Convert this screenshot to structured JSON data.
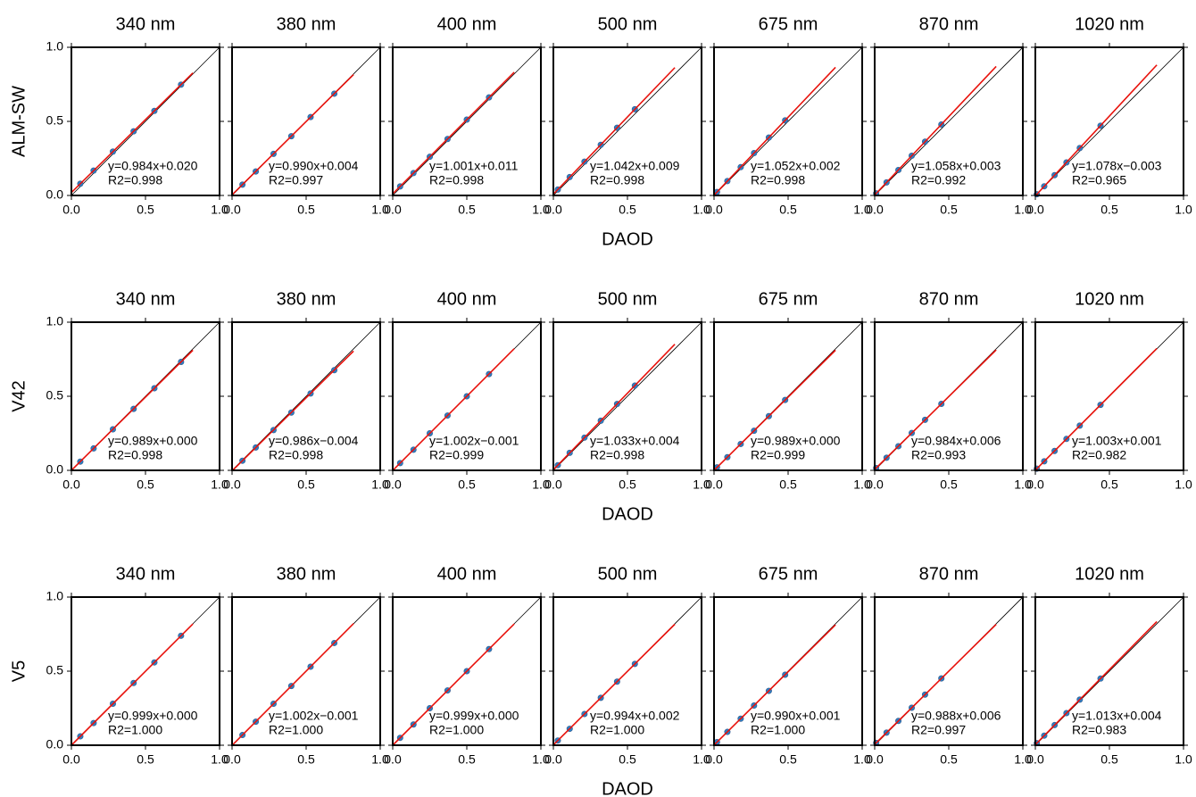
{
  "chart_data": [
    {
      "type": "scatter",
      "title": "340 nm",
      "ylabel": "ALM-SW",
      "x": [
        0.06,
        0.15,
        0.28,
        0.42,
        0.56,
        0.74
      ],
      "y": [
        0.079,
        0.168,
        0.296,
        0.433,
        0.571,
        0.748
      ],
      "fit_x": [
        0,
        0.82
      ],
      "fit_y": [
        0.02,
        0.827
      ],
      "fit_label": "y=0.984x+0.020",
      "r2_label": "R2=0.998",
      "xlim": [
        0,
        1
      ],
      "ylim": [
        0,
        1
      ],
      "xticks": [
        {
          "value": 0,
          "label": "0.0"
        },
        {
          "value": 0.5,
          "label": "0.5"
        },
        {
          "value": 1,
          "label": "1.0"
        }
      ],
      "yticks": [
        {
          "value": 0,
          "label": "0.0"
        },
        {
          "value": 0.5,
          "label": "0.5"
        },
        {
          "value": 1,
          "label": "1.0"
        }
      ]
    },
    {
      "type": "scatter",
      "title": "380 nm",
      "x": [
        0.07,
        0.16,
        0.28,
        0.4,
        0.53,
        0.69
      ],
      "y": [
        0.073,
        0.162,
        0.281,
        0.4,
        0.529,
        0.687
      ],
      "fit_x": [
        0,
        0.82
      ],
      "fit_y": [
        0.004,
        0.816
      ],
      "fit_label": "y=0.990x+0.004",
      "r2_label": "R2=0.997",
      "xlim": [
        0,
        1
      ],
      "ylim": [
        0,
        1
      ],
      "xticks": [
        {
          "value": 0,
          "label": "0.0"
        },
        {
          "value": 0.5,
          "label": "0.5"
        },
        {
          "value": 1,
          "label": "1.0"
        }
      ],
      "yticks": [
        0,
        0.5,
        1
      ]
    },
    {
      "type": "scatter",
      "title": "400 nm",
      "x": [
        0.05,
        0.14,
        0.25,
        0.37,
        0.5,
        0.65
      ],
      "y": [
        0.061,
        0.151,
        0.261,
        0.381,
        0.512,
        0.662
      ],
      "fit_x": [
        0,
        0.82
      ],
      "fit_y": [
        0.011,
        0.832
      ],
      "fit_label": "y=1.001x+0.011",
      "r2_label": "R2=0.998",
      "xlim": [
        0,
        1
      ],
      "ylim": [
        0,
        1
      ],
      "xticks": [
        {
          "value": 0,
          "label": "0.0"
        },
        {
          "value": 0.5,
          "label": "0.5"
        },
        {
          "value": 1,
          "label": "1.0"
        }
      ],
      "yticks": [
        0,
        0.5,
        1
      ]
    },
    {
      "type": "scatter",
      "title": "500 nm",
      "xlabel": "DAOD",
      "x": [
        0.03,
        0.11,
        0.21,
        0.32,
        0.43,
        0.55
      ],
      "y": [
        0.04,
        0.124,
        0.228,
        0.342,
        0.457,
        0.582
      ],
      "fit_x": [
        0,
        0.82
      ],
      "fit_y": [
        0.009,
        0.863
      ],
      "fit_label": "y=1.042x+0.009",
      "r2_label": "R2=0.998",
      "xlim": [
        0,
        1
      ],
      "ylim": [
        0,
        1
      ],
      "xticks": [
        {
          "value": 0,
          "label": "0.0"
        },
        {
          "value": 0.5,
          "label": "0.5"
        },
        {
          "value": 1,
          "label": "1.0"
        }
      ],
      "yticks": [
        0,
        0.5,
        1
      ]
    },
    {
      "type": "scatter",
      "title": "675 nm",
      "x": [
        0.02,
        0.09,
        0.18,
        0.27,
        0.37,
        0.48
      ],
      "y": [
        0.023,
        0.097,
        0.191,
        0.286,
        0.391,
        0.507
      ],
      "fit_x": [
        0,
        0.82
      ],
      "fit_y": [
        0.002,
        0.865
      ],
      "fit_label": "y=1.052x+0.002",
      "r2_label": "R2=0.998",
      "xlim": [
        0,
        1
      ],
      "ylim": [
        0,
        1
      ],
      "xticks": [
        {
          "value": 0,
          "label": "0.0"
        },
        {
          "value": 0.5,
          "label": "0.5"
        },
        {
          "value": 1,
          "label": "1.0"
        }
      ],
      "yticks": [
        0,
        0.5,
        1
      ]
    },
    {
      "type": "scatter",
      "title": "870 nm",
      "x": [
        0.01,
        0.08,
        0.16,
        0.25,
        0.34,
        0.45
      ],
      "y": [
        0.014,
        0.088,
        0.172,
        0.268,
        0.363,
        0.479
      ],
      "fit_x": [
        0,
        0.82
      ],
      "fit_y": [
        0.003,
        0.871
      ],
      "fit_label": "y=1.058x+0.003",
      "r2_label": "R2=0.992",
      "xlim": [
        0,
        1
      ],
      "ylim": [
        0,
        1
      ],
      "xticks": [
        {
          "value": 0,
          "label": "0.0"
        },
        {
          "value": 0.5,
          "label": "0.5"
        },
        {
          "value": 1,
          "label": "1.0"
        }
      ],
      "yticks": [
        0,
        0.5,
        1
      ]
    },
    {
      "type": "scatter",
      "title": "1020 nm",
      "x": [
        0.01,
        0.06,
        0.13,
        0.21,
        0.3,
        0.44
      ],
      "y": [
        0.008,
        0.062,
        0.137,
        0.223,
        0.32,
        0.471
      ],
      "fit_x": [
        0,
        0.82
      ],
      "fit_y": [
        -0.003,
        0.881
      ],
      "fit_label": "y=1.078x−0.003",
      "r2_label": "R2=0.965",
      "xlim": [
        0,
        1
      ],
      "ylim": [
        0,
        1
      ],
      "xticks": [
        {
          "value": 0,
          "label": "0.0"
        },
        {
          "value": 0.5,
          "label": "0.5"
        },
        {
          "value": 1,
          "label": "1.0"
        }
      ],
      "yticks": [
        0,
        0.5,
        1
      ]
    },
    {
      "type": "scatter",
      "title": "340 nm",
      "ylabel": "V42",
      "x": [
        0.06,
        0.15,
        0.28,
        0.42,
        0.56,
        0.74
      ],
      "y": [
        0.059,
        0.148,
        0.277,
        0.415,
        0.554,
        0.732
      ],
      "fit_x": [
        0,
        0.82
      ],
      "fit_y": [
        0.0,
        0.811
      ],
      "fit_label": "y=0.989x+0.000",
      "r2_label": "R2=0.998",
      "xlim": [
        0,
        1
      ],
      "ylim": [
        0,
        1
      ],
      "xticks": [
        {
          "value": 0,
          "label": "0.0"
        },
        {
          "value": 0.5,
          "label": "0.5"
        },
        {
          "value": 1,
          "label": "1.0"
        }
      ],
      "yticks": [
        {
          "value": 0,
          "label": "0.0"
        },
        {
          "value": 0.5,
          "label": "0.5"
        },
        {
          "value": 1,
          "label": "1.0"
        }
      ]
    },
    {
      "type": "scatter",
      "title": "380 nm",
      "x": [
        0.07,
        0.16,
        0.28,
        0.4,
        0.53,
        0.69
      ],
      "y": [
        0.065,
        0.154,
        0.272,
        0.39,
        0.519,
        0.676
      ],
      "fit_x": [
        0,
        0.82
      ],
      "fit_y": [
        -0.004,
        0.805
      ],
      "fit_label": "y=0.986x−0.004",
      "r2_label": "R2=0.998",
      "xlim": [
        0,
        1
      ],
      "ylim": [
        0,
        1
      ],
      "xticks": [
        {
          "value": 0,
          "label": "0.0"
        },
        {
          "value": 0.5,
          "label": "0.5"
        },
        {
          "value": 1,
          "label": "1.0"
        }
      ],
      "yticks": [
        0,
        0.5,
        1
      ]
    },
    {
      "type": "scatter",
      "title": "400 nm",
      "x": [
        0.05,
        0.14,
        0.25,
        0.37,
        0.5,
        0.65
      ],
      "y": [
        0.049,
        0.139,
        0.25,
        0.37,
        0.5,
        0.65
      ],
      "fit_x": [
        0,
        0.82
      ],
      "fit_y": [
        -0.001,
        0.821
      ],
      "fit_label": "y=1.002x−0.001",
      "r2_label": "R2=0.999",
      "xlim": [
        0,
        1
      ],
      "ylim": [
        0,
        1
      ],
      "xticks": [
        {
          "value": 0,
          "label": "0.0"
        },
        {
          "value": 0.5,
          "label": "0.5"
        },
        {
          "value": 1,
          "label": "1.0"
        }
      ],
      "yticks": [
        0,
        0.5,
        1
      ]
    },
    {
      "type": "scatter",
      "title": "500 nm",
      "xlabel": "DAOD",
      "x": [
        0.03,
        0.11,
        0.21,
        0.32,
        0.43,
        0.55
      ],
      "y": [
        0.035,
        0.118,
        0.221,
        0.335,
        0.448,
        0.572
      ],
      "fit_x": [
        0,
        0.82
      ],
      "fit_y": [
        0.004,
        0.851
      ],
      "fit_label": "y=1.033x+0.004",
      "r2_label": "R2=0.998",
      "xlim": [
        0,
        1
      ],
      "ylim": [
        0,
        1
      ],
      "xticks": [
        {
          "value": 0,
          "label": "0.0"
        },
        {
          "value": 0.5,
          "label": "0.5"
        },
        {
          "value": 1,
          "label": "1.0"
        }
      ],
      "yticks": [
        0,
        0.5,
        1
      ]
    },
    {
      "type": "scatter",
      "title": "675 nm",
      "x": [
        0.02,
        0.09,
        0.18,
        0.27,
        0.37,
        0.48
      ],
      "y": [
        0.02,
        0.089,
        0.178,
        0.267,
        0.366,
        0.475
      ],
      "fit_x": [
        0,
        0.82
      ],
      "fit_y": [
        0.0,
        0.811
      ],
      "fit_label": "y=0.989x+0.000",
      "r2_label": "R2=0.999",
      "xlim": [
        0,
        1
      ],
      "ylim": [
        0,
        1
      ],
      "xticks": [
        {
          "value": 0,
          "label": "0.0"
        },
        {
          "value": 0.5,
          "label": "0.5"
        },
        {
          "value": 1,
          "label": "1.0"
        }
      ],
      "yticks": [
        0,
        0.5,
        1
      ]
    },
    {
      "type": "scatter",
      "title": "870 nm",
      "x": [
        0.01,
        0.08,
        0.16,
        0.25,
        0.34,
        0.45
      ],
      "y": [
        0.016,
        0.085,
        0.163,
        0.252,
        0.341,
        0.449
      ],
      "fit_x": [
        0,
        0.82
      ],
      "fit_y": [
        0.006,
        0.813
      ],
      "fit_label": "y=0.984x+0.006",
      "r2_label": "R2=0.993",
      "xlim": [
        0,
        1
      ],
      "ylim": [
        0,
        1
      ],
      "xticks": [
        {
          "value": 0,
          "label": "0.0"
        },
        {
          "value": 0.5,
          "label": "0.5"
        },
        {
          "value": 1,
          "label": "1.0"
        }
      ],
      "yticks": [
        0,
        0.5,
        1
      ]
    },
    {
      "type": "scatter",
      "title": "1020 nm",
      "x": [
        0.01,
        0.06,
        0.13,
        0.21,
        0.3,
        0.44
      ],
      "y": [
        0.011,
        0.061,
        0.131,
        0.212,
        0.302,
        0.442
      ],
      "fit_x": [
        0,
        0.82
      ],
      "fit_y": [
        0.001,
        0.823
      ],
      "fit_label": "y=1.003x+0.001",
      "r2_label": "R2=0.982",
      "xlim": [
        0,
        1
      ],
      "ylim": [
        0,
        1
      ],
      "xticks": [
        {
          "value": 0,
          "label": "0.0"
        },
        {
          "value": 0.5,
          "label": "0.5"
        },
        {
          "value": 1,
          "label": "1.0"
        }
      ],
      "yticks": [
        0,
        0.5,
        1
      ]
    },
    {
      "type": "scatter",
      "title": "340 nm",
      "ylabel": "V5",
      "x": [
        0.06,
        0.15,
        0.28,
        0.42,
        0.56,
        0.74
      ],
      "y": [
        0.06,
        0.15,
        0.28,
        0.42,
        0.559,
        0.739
      ],
      "fit_x": [
        0,
        0.82
      ],
      "fit_y": [
        0.0,
        0.819
      ],
      "fit_label": "y=0.999x+0.000",
      "r2_label": "R2=1.000",
      "xlim": [
        0,
        1
      ],
      "ylim": [
        0,
        1
      ],
      "xticks": [
        {
          "value": 0,
          "label": "0.0"
        },
        {
          "value": 0.5,
          "label": "0.5"
        },
        {
          "value": 1,
          "label": "1.0"
        }
      ],
      "yticks": [
        {
          "value": 0,
          "label": "0.0"
        },
        {
          "value": 0.5,
          "label": "0.5"
        },
        {
          "value": 1,
          "label": "1.0"
        }
      ]
    },
    {
      "type": "scatter",
      "title": "380 nm",
      "x": [
        0.07,
        0.16,
        0.28,
        0.4,
        0.53,
        0.69
      ],
      "y": [
        0.069,
        0.159,
        0.28,
        0.4,
        0.53,
        0.69
      ],
      "fit_x": [
        0,
        0.82
      ],
      "fit_y": [
        -0.001,
        0.821
      ],
      "fit_label": "y=1.002x−0.001",
      "r2_label": "R2=1.000",
      "xlim": [
        0,
        1
      ],
      "ylim": [
        0,
        1
      ],
      "xticks": [
        {
          "value": 0,
          "label": "0.0"
        },
        {
          "value": 0.5,
          "label": "0.5"
        },
        {
          "value": 1,
          "label": "1.0"
        }
      ],
      "yticks": [
        0,
        0.5,
        1
      ]
    },
    {
      "type": "scatter",
      "title": "400 nm",
      "x": [
        0.05,
        0.14,
        0.25,
        0.37,
        0.5,
        0.65
      ],
      "y": [
        0.05,
        0.14,
        0.25,
        0.37,
        0.5,
        0.649
      ],
      "fit_x": [
        0,
        0.82
      ],
      "fit_y": [
        0.0,
        0.819
      ],
      "fit_label": "y=0.999x+0.000",
      "r2_label": "R2=1.000",
      "xlim": [
        0,
        1
      ],
      "ylim": [
        0,
        1
      ],
      "xticks": [
        {
          "value": 0,
          "label": "0.0"
        },
        {
          "value": 0.5,
          "label": "0.5"
        },
        {
          "value": 1,
          "label": "1.0"
        }
      ],
      "yticks": [
        0,
        0.5,
        1
      ]
    },
    {
      "type": "scatter",
      "title": "500 nm",
      "xlabel": "DAOD",
      "x": [
        0.03,
        0.11,
        0.21,
        0.32,
        0.43,
        0.55
      ],
      "y": [
        0.032,
        0.111,
        0.211,
        0.32,
        0.429,
        0.549
      ],
      "fit_x": [
        0,
        0.82
      ],
      "fit_y": [
        0.002,
        0.817
      ],
      "fit_label": "y=0.994x+0.002",
      "r2_label": "R2=1.000",
      "xlim": [
        0,
        1
      ],
      "ylim": [
        0,
        1
      ],
      "xticks": [
        {
          "value": 0,
          "label": "0.0"
        },
        {
          "value": 0.5,
          "label": "0.5"
        },
        {
          "value": 1,
          "label": "1.0"
        }
      ],
      "yticks": [
        0,
        0.5,
        1
      ]
    },
    {
      "type": "scatter",
      "title": "675 nm",
      "x": [
        0.02,
        0.09,
        0.18,
        0.27,
        0.37,
        0.48
      ],
      "y": [
        0.021,
        0.09,
        0.179,
        0.268,
        0.367,
        0.476
      ],
      "fit_x": [
        0,
        0.82
      ],
      "fit_y": [
        0.001,
        0.813
      ],
      "fit_label": "y=0.990x+0.001",
      "r2_label": "R2=1.000",
      "xlim": [
        0,
        1
      ],
      "ylim": [
        0,
        1
      ],
      "xticks": [
        {
          "value": 0,
          "label": "0.0"
        },
        {
          "value": 0.5,
          "label": "0.5"
        },
        {
          "value": 1,
          "label": "1.0"
        }
      ],
      "yticks": [
        0,
        0.5,
        1
      ]
    },
    {
      "type": "scatter",
      "title": "870 nm",
      "x": [
        0.01,
        0.08,
        0.16,
        0.25,
        0.34,
        0.45
      ],
      "y": [
        0.016,
        0.085,
        0.164,
        0.253,
        0.342,
        0.451
      ],
      "fit_x": [
        0,
        0.82
      ],
      "fit_y": [
        0.006,
        0.816
      ],
      "fit_label": "y=0.988x+0.006",
      "r2_label": "R2=0.997",
      "xlim": [
        0,
        1
      ],
      "ylim": [
        0,
        1
      ],
      "xticks": [
        {
          "value": 0,
          "label": "0.0"
        },
        {
          "value": 0.5,
          "label": "0.5"
        },
        {
          "value": 1,
          "label": "1.0"
        }
      ],
      "yticks": [
        0,
        0.5,
        1
      ]
    },
    {
      "type": "scatter",
      "title": "1020 nm",
      "x": [
        0.01,
        0.06,
        0.13,
        0.21,
        0.3,
        0.44
      ],
      "y": [
        0.014,
        0.065,
        0.136,
        0.217,
        0.308,
        0.45
      ],
      "fit_x": [
        0,
        0.82
      ],
      "fit_y": [
        0.004,
        0.835
      ],
      "fit_label": "y=1.013x+0.004",
      "r2_label": "R2=0.983",
      "xlim": [
        0,
        1
      ],
      "ylim": [
        0,
        1
      ],
      "xticks": [
        {
          "value": 0,
          "label": "0.0"
        },
        {
          "value": 0.5,
          "label": "0.5"
        },
        {
          "value": 1,
          "label": "1.0"
        }
      ],
      "yticks": [
        0,
        0.5,
        1
      ]
    }
  ]
}
